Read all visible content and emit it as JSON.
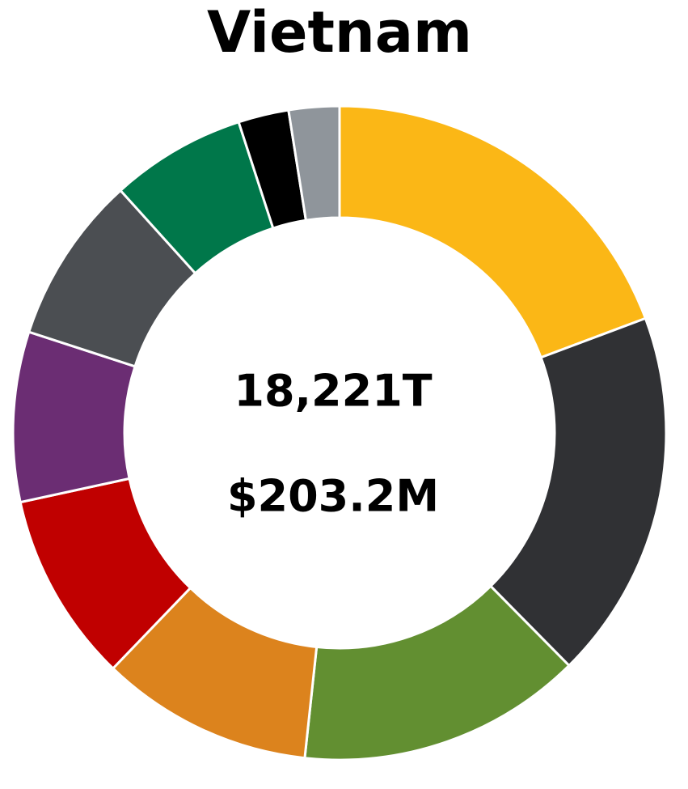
{
  "chart_data": {
    "type": "donut",
    "title": "Vietnam",
    "center_labels": [
      "18,221T",
      "$203.2M"
    ],
    "values": [
      19.3,
      18.3,
      14.1,
      10.5,
      9.4,
      8.4,
      8.3,
      6.7,
      2.5,
      2.5
    ],
    "colors": [
      "#fbb716",
      "#303134",
      "#628f31",
      "#dc831d",
      "#c00000",
      "#6b2d73",
      "#4b4e52",
      "#00774a",
      "#000000",
      "#8f959b"
    ]
  }
}
